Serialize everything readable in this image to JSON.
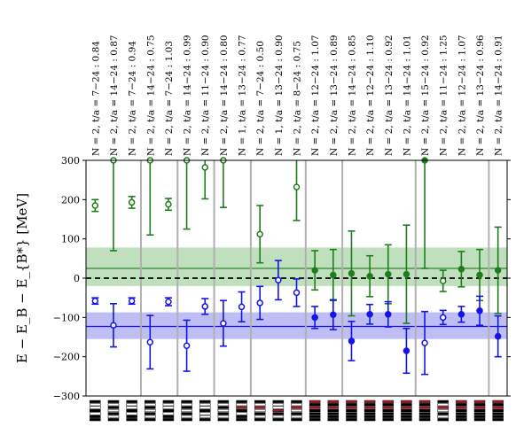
{
  "chart_data": {
    "type": "scatter",
    "title": "",
    "ylabel": "E − E_B − E_{B*}  [MeV]",
    "ylim": [
      -300,
      300
    ],
    "yticks": [
      -300,
      -200,
      -100,
      0,
      100,
      200,
      300
    ],
    "grid": false,
    "groups": [
      3,
      2,
      2,
      2,
      3,
      2,
      4,
      4,
      4,
      2,
      4
    ],
    "columns": [
      {
        "label": "N = 2, t/a = 7−24 : 0.84",
        "green": [
          185,
          15,
          "open"
        ],
        "blue": [
          -58,
          8,
          "open"
        ]
      },
      {
        "label": "N = 2, t/a = 14−24 : 0.87",
        "green": [
          300,
          230,
          "open"
        ],
        "blue": [
          -120,
          55,
          "open"
        ]
      },
      {
        "label": "N = 2, t/a = 7−24 : 0.94",
        "green": [
          193,
          15,
          "open"
        ],
        "blue": [
          -58,
          8,
          "open"
        ]
      },
      {
        "label": "N = 2, t/a = 14−24 : 0.75",
        "green": [
          300,
          190,
          "open"
        ],
        "blue": [
          -163,
          68,
          "open"
        ]
      },
      {
        "label": "N = 2, t/a = 7−24 : 1.03",
        "green": [
          188,
          15,
          "open"
        ],
        "blue": [
          -60,
          10,
          "open"
        ]
      },
      {
        "label": "N = 2, t/a = 14−24 : 0.99",
        "green": [
          300,
          175,
          "open"
        ],
        "blue": [
          -172,
          65,
          "open"
        ]
      },
      {
        "label": "N = 2, t/a = 11−24 : 0.90",
        "green": [
          282,
          80,
          "open"
        ],
        "blue": [
          -72,
          20,
          "open"
        ]
      },
      {
        "label": "N = 2, t/a = 14−24 : 0.80",
        "green": [
          300,
          120,
          "open"
        ],
        "blue": [
          -115,
          58,
          "open"
        ]
      },
      {
        "label": "N = 1, t/a = 13−24 : 0.77",
        "green": null,
        "blue": [
          -73,
          38,
          "open"
        ]
      },
      {
        "label": "N = 2, t/a = 7−24 : 0.50",
        "green": [
          112,
          73,
          "open"
        ],
        "blue": [
          -63,
          42,
          "open"
        ]
      },
      {
        "label": "N = 1, t/a = 13−24 : 0.90",
        "green": null,
        "blue": [
          -5,
          50,
          "open"
        ]
      },
      {
        "label": "N = 2, t/a = 8−24 : 0.75",
        "green": [
          232,
          85,
          "open"
        ],
        "blue": [
          -37,
          35,
          "open"
        ]
      },
      {
        "label": "N = 2, t/a = 12−24 : 1.07",
        "green": [
          20,
          50,
          "filled"
        ],
        "blue": [
          -100,
          28,
          "filled"
        ]
      },
      {
        "label": "N = 2, t/a = 13−24 : 0.89",
        "green": [
          8,
          65,
          "filled"
        ],
        "blue": [
          -93,
          38,
          "filled"
        ]
      },
      {
        "label": "N = 2, t/a = 14−24 : 0.85",
        "green": [
          12,
          108,
          "filled"
        ],
        "blue": [
          -160,
          50,
          "filled"
        ]
      },
      {
        "label": "N = 2, t/a = 12−24 : 1.10",
        "green": [
          5,
          52,
          "filled"
        ],
        "blue": [
          -92,
          25,
          "filled"
        ]
      },
      {
        "label": "N = 2, t/a = 13−24 : 0.92",
        "green": [
          10,
          75,
          "filled"
        ],
        "blue": [
          -92,
          32,
          "filled"
        ]
      },
      {
        "label": "N = 2, t/a = 14−24 : 1.01",
        "green": [
          10,
          125,
          "filled"
        ],
        "blue": [
          -185,
          57,
          "filled"
        ]
      },
      {
        "label": "N = 2, t/a = 15−24 : 0.92",
        "green": [
          300,
          275,
          "filled"
        ],
        "blue": [
          -165,
          80,
          "open"
        ]
      },
      {
        "label": "N = 2, t/a = 11−24 : 1.25",
        "green": [
          -7,
          27,
          "open"
        ],
        "blue": [
          -100,
          18,
          "open"
        ]
      },
      {
        "label": "N = 2, t/a = 12−24 : 1.07",
        "green": [
          23,
          45,
          "filled"
        ],
        "blue": [
          -92,
          20,
          "filled"
        ]
      },
      {
        "label": "N = 2, t/a = 13−24 : 0.96",
        "green": [
          8,
          65,
          "filled"
        ],
        "blue": [
          -83,
          37,
          "filled"
        ]
      },
      {
        "label": "N = 2, t/a = 14−24 : 0.91",
        "green": [
          20,
          110,
          "filled"
        ],
        "blue": [
          -148,
          52,
          "filled"
        ]
      }
    ],
    "bands": [
      {
        "color": "green",
        "center": 25,
        "low": -20,
        "high": 78
      },
      {
        "color": "blue",
        "center": -123,
        "low": -155,
        "high": -87
      }
    ],
    "reference_line": 0,
    "colors": {
      "green": "#1e7d1e",
      "blue": "#1414e6",
      "greenBand": "#b5d9b0",
      "blueBand": "#b3b3f2",
      "red": "#b01818"
    },
    "icon_patterns": [
      [
        "b",
        "w",
        "w",
        "b",
        "w",
        "b",
        "b"
      ],
      [
        "b",
        "w",
        "b",
        "w",
        "b",
        "w",
        "b"
      ],
      [
        "b",
        "w",
        "w",
        "b",
        "w",
        "b",
        "b"
      ],
      [
        "b",
        "w",
        "b",
        "w",
        "b",
        "w",
        "b"
      ],
      [
        "b",
        "w",
        "w",
        "b",
        "w",
        "b",
        "b"
      ],
      [
        "b",
        "w",
        "b",
        "w",
        "b",
        "w",
        "b"
      ],
      [
        "b",
        "w",
        "w",
        "b",
        "w",
        "w",
        "b"
      ],
      [
        "b",
        "w",
        "b",
        "w",
        "b",
        "w",
        "b"
      ],
      [
        "b",
        "w",
        "r",
        "b",
        "w",
        "b",
        "b"
      ],
      [
        "b",
        "w",
        "r",
        "w",
        "b",
        "w",
        "b"
      ],
      [
        "b",
        "w",
        "w",
        "r",
        "b",
        "w",
        "b"
      ],
      [
        "b",
        "w",
        "r",
        "w",
        "b",
        "w",
        "b"
      ],
      [
        "r",
        "b",
        "r",
        "b",
        "b",
        "b",
        "b"
      ],
      [
        "r",
        "b",
        "r",
        "b",
        "b",
        "b",
        "b"
      ],
      [
        "r",
        "b",
        "r",
        "b",
        "b",
        "b",
        "b"
      ],
      [
        "r",
        "b",
        "r",
        "b",
        "b",
        "b",
        "b"
      ],
      [
        "r",
        "b",
        "r",
        "b",
        "b",
        "b",
        "b"
      ],
      [
        "r",
        "b",
        "r",
        "b",
        "b",
        "b",
        "b"
      ],
      [
        "r",
        "b",
        "r",
        "b",
        "b",
        "b",
        "b"
      ],
      [
        "b",
        "w",
        "r",
        "w",
        "b",
        "w",
        "b"
      ],
      [
        "r",
        "b",
        "r",
        "b",
        "b",
        "b",
        "b"
      ],
      [
        "r",
        "b",
        "r",
        "b",
        "b",
        "b",
        "b"
      ],
      [
        "r",
        "b",
        "r",
        "b",
        "b",
        "b",
        "b"
      ]
    ]
  }
}
